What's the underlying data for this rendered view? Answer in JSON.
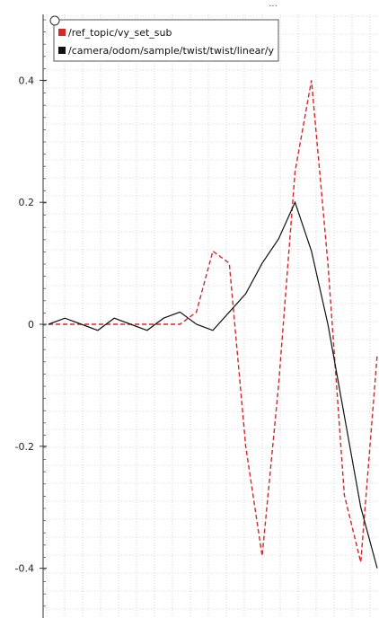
{
  "header": {
    "overflow_label": "..."
  },
  "chart_data": {
    "type": "line",
    "title": "",
    "xlabel": "",
    "ylabel": "",
    "ylim": [
      -0.48,
      0.51
    ],
    "grid": true,
    "legend_placement": "top-left",
    "y_ticks": [
      {
        "value": 0.4,
        "label": "0.4"
      },
      {
        "value": 0.2,
        "label": "0.2"
      },
      {
        "value": 0,
        "label": "0"
      },
      {
        "value": -0.2,
        "label": "-0.2"
      },
      {
        "value": -0.4,
        "label": "-0.4"
      }
    ],
    "series": [
      {
        "name": "/ref_topic/vy_set_sub",
        "color": "#d62728",
        "x": [
          0,
          5,
          10,
          15,
          20,
          25,
          30,
          35,
          40,
          45,
          50,
          55,
          60,
          65,
          70,
          75,
          80,
          85,
          90,
          95,
          100
        ],
        "y": [
          0,
          0,
          0,
          0,
          0,
          0,
          0,
          0,
          0,
          0.02,
          0.12,
          0.1,
          -0.2,
          -0.38,
          -0.1,
          0.25,
          0.4,
          0.1,
          -0.28,
          -0.39,
          -0.05
        ]
      },
      {
        "name": "/camera/odom/sample/twist/twist/linear/y",
        "color": "#111111",
        "x": [
          0,
          2.5,
          5,
          7.5,
          10,
          12.5,
          15,
          17.5,
          20,
          22.5,
          25,
          27.5,
          30,
          32.5,
          35,
          37.5,
          40,
          42.5,
          45,
          47.5,
          50
        ],
        "y": [
          0,
          0.01,
          0,
          -0.01,
          0.01,
          0,
          -0.01,
          0.01,
          0.02,
          0,
          -0.01,
          0.02,
          0.05,
          0.1,
          0.14,
          0.2,
          0.12,
          0,
          -0.15,
          -0.3,
          -0.4
        ]
      }
    ]
  }
}
